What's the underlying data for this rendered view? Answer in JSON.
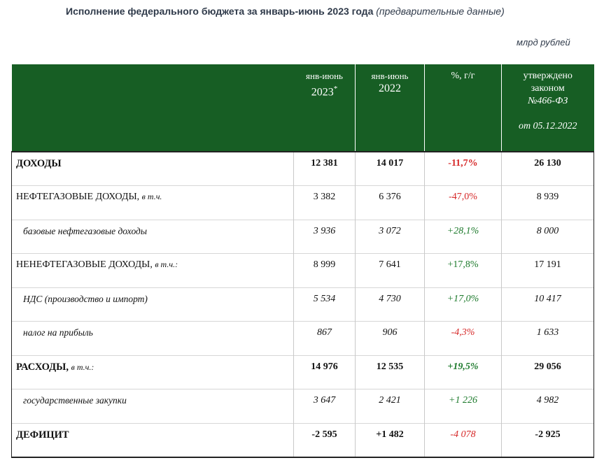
{
  "title": {
    "main": "Исполнение федерального бюджета за январь-июнь 2023 года",
    "note": "(предварительные данные)"
  },
  "units": "млрд рублей",
  "columns": {
    "col1_line1": "янв-июнь",
    "col1_year": "2023",
    "col1_mark": "*",
    "col2_line1": "янв-июнь",
    "col2_year": "2022",
    "col3": "%, г/г",
    "col4_line1": "утверждено",
    "col4_line2": "законом",
    "col4_line3": "№466-ФЗ",
    "col4_line4": "от 05.12.2022"
  },
  "rows": [
    {
      "label": "ДОХОДЫ",
      "note": "",
      "v2023": "12 381",
      "v2022": "14 017",
      "pct": "-11,7%",
      "law": "26 130"
    },
    {
      "label": "НЕФТЕГАЗОВЫЕ ДОХОДЫ,",
      "note": "в т.ч.",
      "v2023": "3 382",
      "v2022": "6 376",
      "pct": "-47,0%",
      "law": "8 939"
    },
    {
      "label": "базовые нефтегазовые доходы",
      "note": "",
      "v2023": "3 936",
      "v2022": "3 072",
      "pct": "+28,1%",
      "law": "8 000"
    },
    {
      "label": "НЕНЕФТЕГАЗОВЫЕ ДОХОДЫ,",
      "note": "в т.ч.:",
      "v2023": "8 999",
      "v2022": "7 641",
      "pct": "+17,8%",
      "law": "17 191"
    },
    {
      "label": "НДС (производство и импорт)",
      "note": "",
      "v2023": "5 534",
      "v2022": "4 730",
      "pct": "+17,0%",
      "law": "10 417"
    },
    {
      "label": "налог на прибыль",
      "note": "",
      "v2023": "867",
      "v2022": "906",
      "pct": "-4,3%",
      "law": "1 633"
    },
    {
      "label": "РАСХОДЫ,",
      "note": "в т.ч.:",
      "v2023": "14 976",
      "v2022": "12 535",
      "pct": "+19,5%",
      "law": "29 056"
    },
    {
      "label": "государственные закупки",
      "note": "",
      "v2023": "3 647",
      "v2022": "2 421",
      "pct": "+1 226",
      "law": "4 982"
    },
    {
      "label": "ДЕФИЦИТ",
      "note": "",
      "v2023": "-2 595",
      "v2022": "+1 482",
      "pct": "-4 078",
      "law": "-2 925"
    }
  ],
  "colors": {
    "header_green": "#175e24",
    "negative": "#d62828",
    "positive": "#1d7a2c"
  }
}
